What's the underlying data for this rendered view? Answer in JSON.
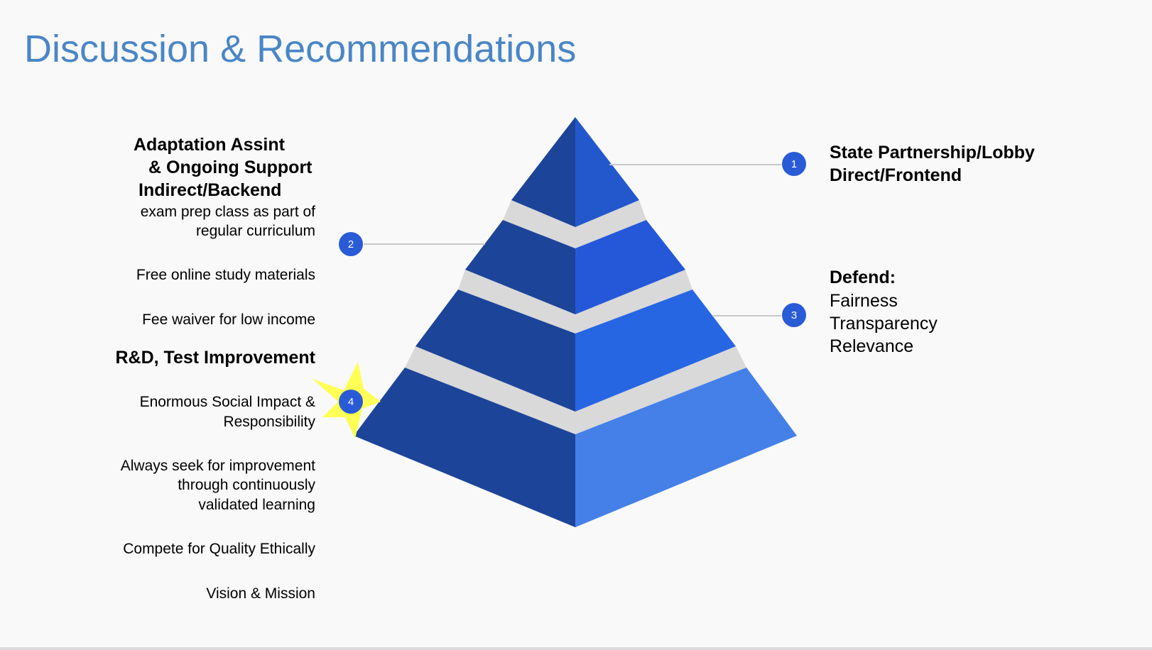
{
  "slide": {
    "title": "Discussion & Recommendations"
  },
  "colors": {
    "title": "#4a86c6",
    "tier_dark": "#1c4499",
    "tier1_light": "#2357cc",
    "tier2_light": "#2458d8",
    "tier3_light": "#2766e3",
    "tier4_light": "#4480e8",
    "gap": "#d9d9d9",
    "marker": "#2a5bd7",
    "star": "#ffff55"
  },
  "markers": [
    "1",
    "2",
    "3",
    "4"
  ],
  "left": {
    "heading1_line1": "Adaptation Assint",
    "heading1_line2": "& Ongoing Support",
    "heading1_line3": "Indirect/Backend",
    "item1_line1": "exam prep class as part of",
    "item1_line2": "regular curriculum",
    "item2": "Free online study materials",
    "item3": "Fee waiver for low income",
    "heading2": "R&D, Test Improvement",
    "item4_line1": "Enormous Social Impact &",
    "item4_line2": "Responsibility",
    "item5_line1": "Always seek for improvement",
    "item5_line2": "through continuously",
    "item5_line3": "validated learning",
    "item6": "Compete for Quality Ethically",
    "item7": "Vision & Mission"
  },
  "right": {
    "heading1_line1": "State Partnership/Lobby",
    "heading1_line2": "Direct/Frontend",
    "heading2": "Defend:",
    "item1": "Fairness",
    "item2": "Transparency",
    "item3": "Relevance"
  }
}
